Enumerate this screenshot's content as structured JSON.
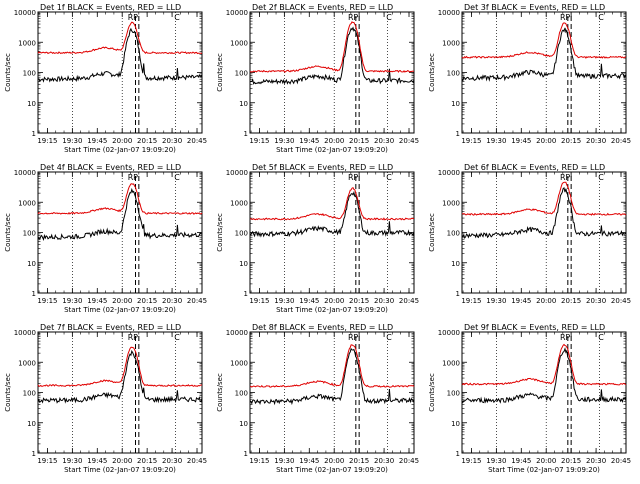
{
  "colors": {
    "events": "#000000",
    "lld": "#e00000",
    "background": "#ffffff"
  },
  "chart_data": [
    {
      "type": "line",
      "title": "Det 1f BLACK = Events, RED = LLD",
      "xlabel": "Start Time (02-Jan-07 19:09:20)",
      "ylabel": "Counts/sec",
      "yscale": "log",
      "ylim": [
        1,
        10000
      ],
      "x_ticks": [
        "19:15",
        "19:30",
        "19:45",
        "20:00",
        "20:15",
        "20:30",
        "20:45"
      ],
      "y_ticks": [
        "1",
        "10",
        "100",
        "1000",
        "10000"
      ],
      "markers": [
        "R",
        "P",
        "C"
      ],
      "series": [
        {
          "name": "Events",
          "color": "#000000",
          "peak_time": "20:06",
          "baseline_start": 60,
          "baseline_end": 70,
          "peak_value": 2500
        },
        {
          "name": "LLD",
          "color": "#e00000",
          "peak_time": "20:06",
          "baseline_start": 450,
          "baseline_end": 450,
          "peak_value": 4000
        }
      ]
    },
    {
      "type": "line",
      "title": "Det 2f BLACK = Events, RED = LLD",
      "xlabel": "Start Time (02-Jan-07 19:09:20)",
      "ylabel": "Counts/sec",
      "yscale": "log",
      "ylim": [
        1,
        10000
      ],
      "x_ticks": [
        "19:15",
        "19:30",
        "19:45",
        "20:00",
        "20:15",
        "20:30",
        "20:45"
      ],
      "y_ticks": [
        "1",
        "10",
        "100",
        "1000",
        "10000"
      ],
      "markers": [
        "R",
        "P",
        "C"
      ],
      "series": [
        {
          "name": "Events",
          "color": "#000000",
          "peak_time": "20:11",
          "baseline_start": 50,
          "baseline_end": 55,
          "peak_value": 3000
        },
        {
          "name": "LLD",
          "color": "#e00000",
          "peak_time": "20:11",
          "baseline_start": 110,
          "baseline_end": 110,
          "peak_value": 4500
        }
      ]
    },
    {
      "type": "line",
      "title": "Det 3f BLACK = Events, RED = LLD",
      "xlabel": "",
      "ylabel": "Counts/sec",
      "yscale": "log",
      "ylim": [
        1,
        10000
      ],
      "x_ticks": [
        "19:15",
        "19:30",
        "19:45",
        "20:00",
        "20:15",
        "20:30",
        "20:45"
      ],
      "y_ticks": [
        "1",
        "10",
        "100",
        "1000",
        "10000"
      ],
      "markers": [
        "R",
        "P",
        "C"
      ],
      "series": [
        {
          "name": "Events",
          "color": "#000000",
          "peak_time": "20:11",
          "baseline_start": 65,
          "baseline_end": 80,
          "peak_value": 2500
        },
        {
          "name": "LLD",
          "color": "#e00000",
          "peak_time": "20:11",
          "baseline_start": 320,
          "baseline_end": 320,
          "peak_value": 4000
        }
      ]
    },
    {
      "type": "line",
      "title": "Det 4f BLACK = Events, RED = LLD",
      "xlabel": "Start Time (02-Jan-07 19:09:20)",
      "ylabel": "Counts/sec",
      "yscale": "log",
      "ylim": [
        1,
        10000
      ],
      "x_ticks": [
        "19:15",
        "19:30",
        "19:45",
        "20:00",
        "20:15",
        "20:30",
        "20:45"
      ],
      "y_ticks": [
        "1",
        "10",
        "100",
        "1000",
        "10000"
      ],
      "markers": [
        "R",
        "P",
        "C"
      ],
      "series": [
        {
          "name": "Events",
          "color": "#000000",
          "peak_time": "20:06",
          "baseline_start": 70,
          "baseline_end": 85,
          "peak_value": 2200
        },
        {
          "name": "LLD",
          "color": "#e00000",
          "peak_time": "20:06",
          "baseline_start": 430,
          "baseline_end": 430,
          "peak_value": 3800
        }
      ]
    },
    {
      "type": "line",
      "title": "Det 5f BLACK = Events, RED = LLD",
      "xlabel": "Start Time (02-Jan-07 19:09:20)",
      "ylabel": "Counts/sec",
      "yscale": "log",
      "ylim": [
        1,
        10000
      ],
      "x_ticks": [
        "19:15",
        "19:30",
        "19:45",
        "20:00",
        "20:15",
        "20:30",
        "20:45"
      ],
      "y_ticks": [
        "1",
        "10",
        "100",
        "1000",
        "10000"
      ],
      "markers": [
        "R",
        "P",
        "C"
      ],
      "series": [
        {
          "name": "Events",
          "color": "#000000",
          "peak_time": "20:11",
          "baseline_start": 90,
          "baseline_end": 100,
          "peak_value": 2000
        },
        {
          "name": "LLD",
          "color": "#e00000",
          "peak_time": "20:11",
          "baseline_start": 280,
          "baseline_end": 280,
          "peak_value": 2600
        }
      ]
    },
    {
      "type": "line",
      "title": "Det 6f BLACK = Events, RED = LLD",
      "xlabel": "",
      "ylabel": "Counts/sec",
      "yscale": "log",
      "ylim": [
        1,
        10000
      ],
      "x_ticks": [
        "19:15",
        "19:30",
        "19:45",
        "20:00",
        "20:15",
        "20:30",
        "20:45"
      ],
      "y_ticks": [
        "1",
        "10",
        "100",
        "1000",
        "10000"
      ],
      "markers": [
        "R",
        "P",
        "C"
      ],
      "series": [
        {
          "name": "Events",
          "color": "#000000",
          "peak_time": "20:11",
          "baseline_start": 80,
          "baseline_end": 95,
          "peak_value": 2500
        },
        {
          "name": "LLD",
          "color": "#e00000",
          "peak_time": "20:11",
          "baseline_start": 400,
          "baseline_end": 400,
          "peak_value": 4200
        }
      ]
    },
    {
      "type": "line",
      "title": "Det 7f BLACK = Events, RED = LLD",
      "xlabel": "Start Time (02-Jan-07 19:09:20)",
      "ylabel": "Counts/sec",
      "yscale": "log",
      "ylim": [
        1,
        10000
      ],
      "x_ticks": [
        "19:15",
        "19:30",
        "19:45",
        "20:00",
        "20:15",
        "20:30",
        "20:45"
      ],
      "y_ticks": [
        "1",
        "10",
        "100",
        "1000",
        "10000"
      ],
      "markers": [
        "R",
        "P",
        "C"
      ],
      "series": [
        {
          "name": "Events",
          "color": "#000000",
          "peak_time": "20:06",
          "baseline_start": 55,
          "baseline_end": 60,
          "peak_value": 2000
        },
        {
          "name": "LLD",
          "color": "#e00000",
          "peak_time": "20:06",
          "baseline_start": 170,
          "baseline_end": 170,
          "peak_value": 3000
        }
      ]
    },
    {
      "type": "line",
      "title": "Det 8f BLACK = Events, RED = LLD",
      "xlabel": "Start Time (02-Jan-07 19:09:20)",
      "ylabel": "Counts/sec",
      "yscale": "log",
      "ylim": [
        1,
        10000
      ],
      "x_ticks": [
        "19:15",
        "19:30",
        "19:45",
        "20:00",
        "20:15",
        "20:30",
        "20:45"
      ],
      "y_ticks": [
        "1",
        "10",
        "100",
        "1000",
        "10000"
      ],
      "markers": [
        "R",
        "P",
        "C"
      ],
      "series": [
        {
          "name": "Events",
          "color": "#000000",
          "peak_time": "20:11",
          "baseline_start": 50,
          "baseline_end": 55,
          "peak_value": 2500
        },
        {
          "name": "LLD",
          "color": "#e00000",
          "peak_time": "20:11",
          "baseline_start": 160,
          "baseline_end": 160,
          "peak_value": 3600
        }
      ]
    },
    {
      "type": "line",
      "title": "Det 9f BLACK = Events, RED = LLD",
      "xlabel": "Start Time (02-Jan-07 19:09:20)",
      "ylabel": "Counts/sec",
      "yscale": "log",
      "ylim": [
        1,
        10000
      ],
      "x_ticks": [
        "19:15",
        "19:30",
        "19:45",
        "20:00",
        "20:15",
        "20:30",
        "20:45"
      ],
      "y_ticks": [
        "1",
        "10",
        "100",
        "1000",
        "10000"
      ],
      "markers": [
        "R",
        "P",
        "C"
      ],
      "series": [
        {
          "name": "Events",
          "color": "#000000",
          "peak_time": "20:11",
          "baseline_start": 55,
          "baseline_end": 60,
          "peak_value": 2500
        },
        {
          "name": "LLD",
          "color": "#e00000",
          "peak_time": "20:11",
          "baseline_start": 190,
          "baseline_end": 190,
          "peak_value": 3500
        }
      ]
    }
  ]
}
